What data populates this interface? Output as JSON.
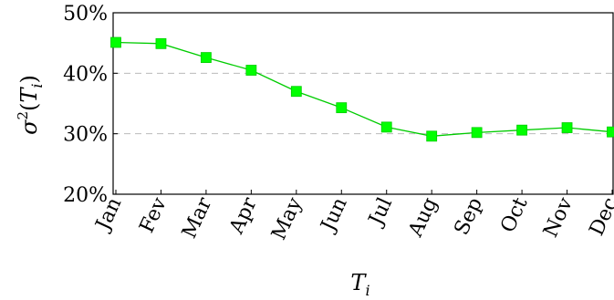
{
  "chart_data": {
    "type": "line",
    "categories": [
      "Jan",
      "Fev",
      "Mar",
      "Apr",
      "May",
      "Jun",
      "Jul",
      "Aug",
      "Sep",
      "Oct",
      "Nov",
      "Dec"
    ],
    "series": [
      {
        "values": [
          45.1,
          44.9,
          42.6,
          40.5,
          37.0,
          34.3,
          31.1,
          29.6,
          30.2,
          30.6,
          31.0,
          30.3
        ],
        "color": "#00ff00",
        "line_color": "#00cc00",
        "marker": "square"
      }
    ],
    "title": "",
    "xlabel_base": "T",
    "xlabel_sub": "i",
    "ylabel_sigma": "σ",
    "ylabel_exp": "2",
    "ylabel_open": "(",
    "ylabel_T": "T",
    "ylabel_sub": "i",
    "ylabel_close": ")",
    "ylim": [
      20,
      50
    ],
    "yticks": [
      20,
      30,
      40,
      50
    ],
    "ytick_labels": [
      "20%",
      "30%",
      "40%",
      "50%"
    ],
    "grid": "horizontal dashed",
    "grid_color": "#bbbbbb",
    "legend": "none"
  }
}
